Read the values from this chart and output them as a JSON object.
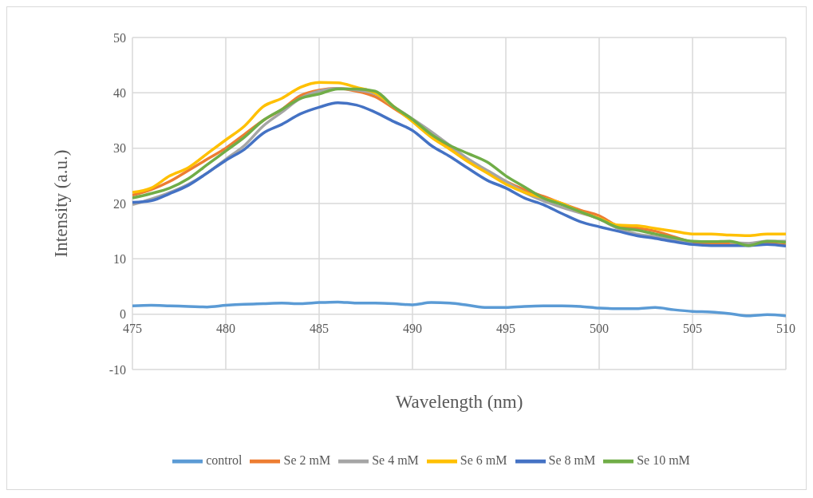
{
  "chart_data": {
    "type": "line",
    "xlabel": "Wavelength (nm)",
    "ylabel": "Intensity (a.u.)",
    "x": [
      475,
      476,
      477,
      478,
      479,
      480,
      481,
      482,
      483,
      484,
      485,
      486,
      487,
      488,
      489,
      490,
      491,
      492,
      493,
      494,
      495,
      496,
      497,
      498,
      499,
      500,
      501,
      502,
      503,
      504,
      505,
      506,
      507,
      508,
      509,
      510
    ],
    "series": [
      {
        "name": "control",
        "color": "#5b9bd5",
        "values": [
          1.5,
          1.6,
          1.5,
          1.4,
          1.3,
          1.6,
          1.8,
          1.9,
          2.0,
          1.9,
          2.1,
          2.2,
          2.0,
          2.0,
          1.9,
          1.7,
          2.1,
          2.0,
          1.6,
          1.2,
          1.2,
          1.4,
          1.5,
          1.5,
          1.4,
          1.1,
          1.0,
          1.0,
          1.2,
          0.8,
          0.5,
          0.4,
          0.1,
          -0.3,
          -0.1,
          -0.3
        ]
      },
      {
        "name": "Se 2 mM",
        "color": "#ed7d31",
        "values": [
          21.5,
          22.5,
          24,
          26,
          28,
          30,
          32.5,
          35,
          37,
          39.5,
          40.5,
          40.8,
          40.3,
          39.3,
          37.2,
          35,
          32.5,
          30,
          27.8,
          25.8,
          24,
          22.5,
          21.3,
          20,
          18.8,
          17.8,
          16,
          15.6,
          15,
          14,
          13,
          12.8,
          12.8,
          12.7,
          12.8,
          12.5
        ]
      },
      {
        "name": "Se 4 mM",
        "color": "#a5a5a5",
        "values": [
          19.8,
          20.8,
          22,
          23.5,
          25.5,
          28,
          30.5,
          34,
          36.5,
          39,
          40.3,
          40.8,
          40.5,
          39.8,
          37.5,
          35.3,
          33,
          30.5,
          28,
          26,
          24,
          22,
          20.5,
          19.3,
          18.3,
          17.2,
          15.5,
          14.5,
          14,
          13.5,
          13,
          null,
          13,
          12.8,
          13.2,
          13.2
        ]
      },
      {
        "name": "Se 6 mM",
        "color": "#ffc000",
        "values": [
          22,
          22.8,
          25,
          26.5,
          29,
          31.5,
          34,
          37.5,
          39,
          41,
          41.9,
          41.8,
          41,
          40,
          37.5,
          34.8,
          32,
          29.8,
          27.5,
          25.5,
          23.5,
          22,
          21,
          20,
          18.5,
          17.3,
          16.1,
          16,
          15.5,
          15,
          14.5,
          14.5,
          14.3,
          14.2,
          14.5,
          14.5
        ]
      },
      {
        "name": "Se 8 mM",
        "color": "#4472c4",
        "values": [
          20.2,
          20.5,
          21.8,
          23.3,
          25.5,
          27.8,
          29.8,
          32.7,
          34.3,
          36.2,
          37.4,
          38.2,
          37.8,
          36.5,
          34.8,
          33.2,
          30.5,
          28.5,
          26.3,
          24.2,
          22.8,
          21,
          19.8,
          18.2,
          16.7,
          15.8,
          15,
          14.2,
          13.7,
          13.1,
          12.6,
          12.4,
          12.4,
          12.4,
          12.6,
          12.3
        ]
      },
      {
        "name": "Se 10 mM",
        "color": "#70ad47",
        "values": [
          21,
          21.8,
          22.8,
          24.5,
          27,
          29.5,
          32,
          35,
          37,
          39,
          39.8,
          40.7,
          40.7,
          40.3,
          37.5,
          35.2,
          32.5,
          30.5,
          29,
          27.5,
          25,
          23,
          21,
          19.8,
          18.5,
          17.2,
          15.7,
          15.2,
          14.5,
          13.8,
          13.2,
          13.1,
          13.2,
          12.4,
          13.2,
          13
        ]
      }
    ],
    "xlim": [
      475,
      510
    ],
    "xticks": [
      475,
      480,
      485,
      490,
      495,
      500,
      505,
      510
    ],
    "ylim": [
      -10,
      50
    ],
    "yticks": [
      -10,
      0,
      10,
      20,
      30,
      40,
      50
    ],
    "grid": true,
    "legend": "bottom",
    "marker": "none",
    "line_style": "solid"
  }
}
